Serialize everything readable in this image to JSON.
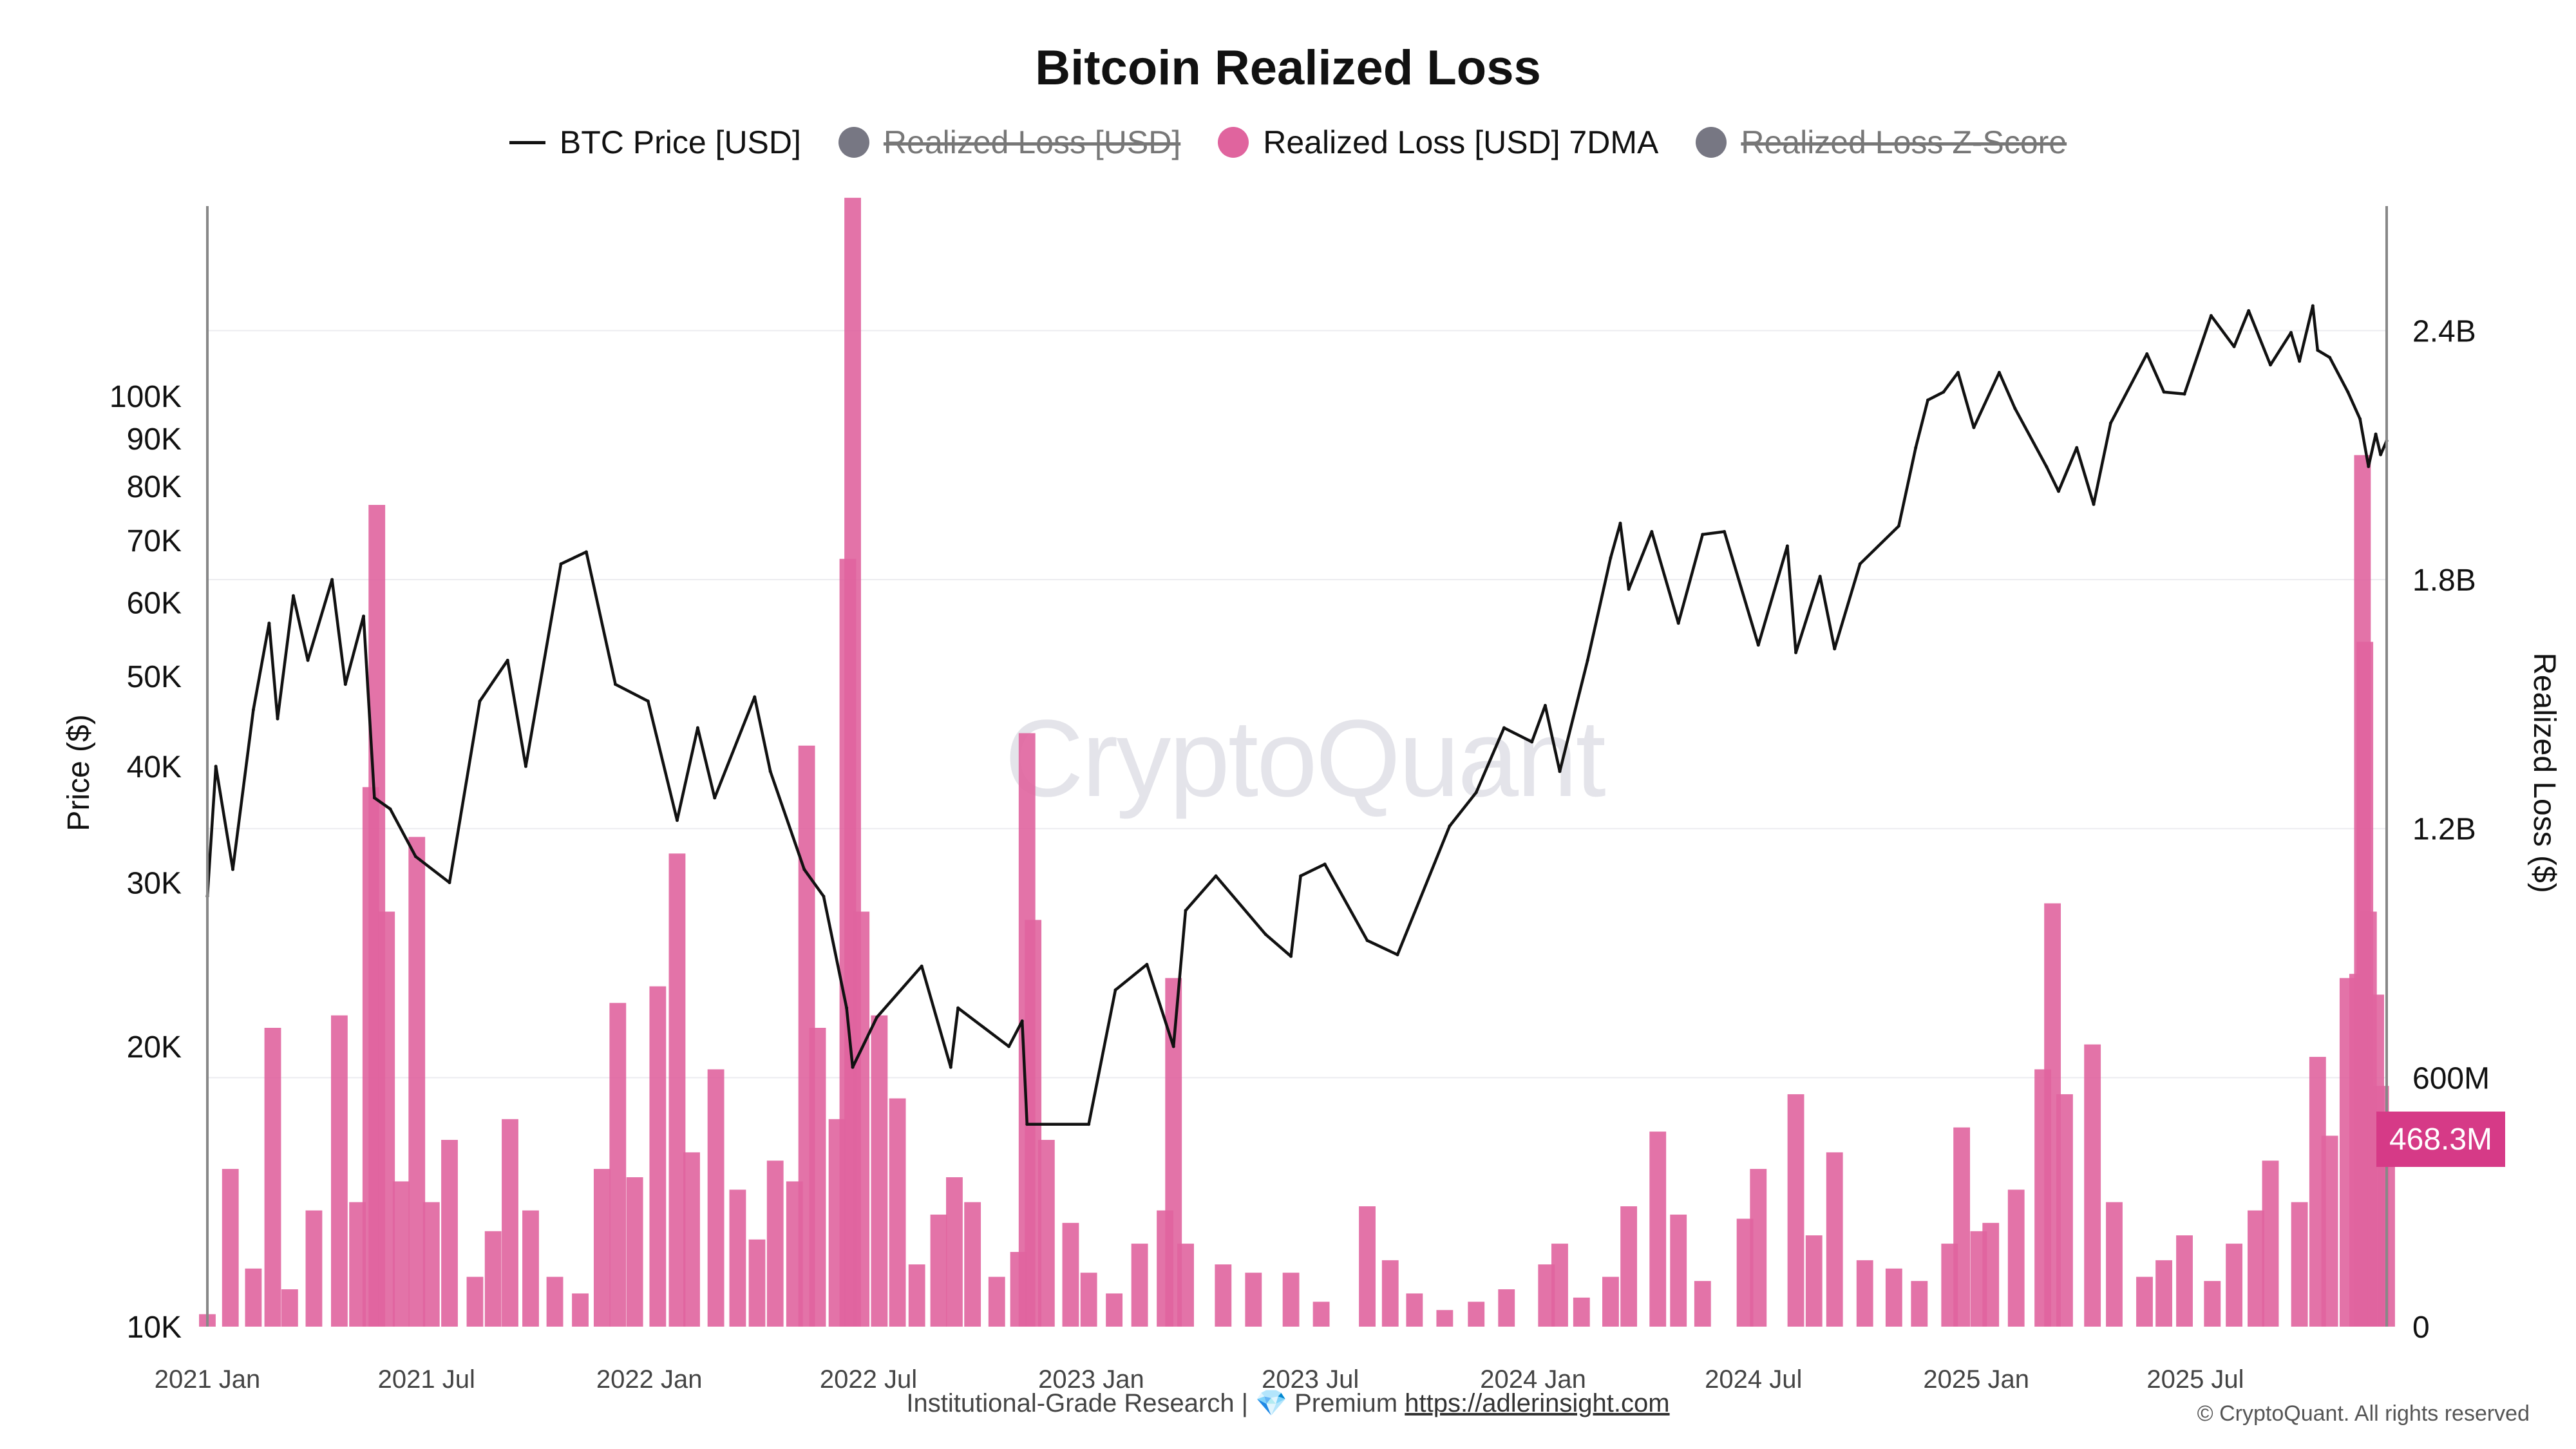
{
  "title": "Bitcoin Realized Loss",
  "legend": [
    {
      "label": "BTC Price [USD]",
      "kind": "line",
      "color": "#111111",
      "enabled": true
    },
    {
      "label": "Realized Loss [USD]",
      "kind": "dot",
      "color": "#777783",
      "enabled": false
    },
    {
      "label": "Realized Loss [USD] 7DMA",
      "kind": "dot",
      "color": "#e0649e",
      "enabled": true
    },
    {
      "label": "Realized Loss Z-Score",
      "kind": "dot",
      "color": "#777783",
      "enabled": false
    }
  ],
  "watermark": "CryptoQuant",
  "footer": {
    "text": "Institutional-Grade Research | 💎 Premium",
    "link": "https://adlerinsight.com",
    "copyright": "© CryptoQuant. All rights reserved"
  },
  "current_value_badge": "468.3M",
  "chart_data": {
    "type": "line+bar",
    "title": "Bitcoin Realized Loss",
    "x_start": "2021-01-01",
    "x_end": "2025-12-06",
    "x_ticks": [
      {
        "label": "2021 Jan",
        "date": "2021-01-01"
      },
      {
        "label": "2021 Jul",
        "date": "2021-07-01"
      },
      {
        "label": "2022 Jan",
        "date": "2022-01-01"
      },
      {
        "label": "2022 Jul",
        "date": "2022-07-01"
      },
      {
        "label": "2023 Jan",
        "date": "2023-01-01"
      },
      {
        "label": "2023 Jul",
        "date": "2023-07-01"
      },
      {
        "label": "2024 Jan",
        "date": "2024-01-01"
      },
      {
        "label": "2024 Jul",
        "date": "2024-07-01"
      },
      {
        "label": "2025 Jan",
        "date": "2025-01-01"
      },
      {
        "label": "2025 Jul",
        "date": "2025-07-01"
      }
    ],
    "left_axis": {
      "label": "Price ($)",
      "scale": "log",
      "range": [
        10000,
        160000
      ],
      "ticks": [
        {
          "label": "10K",
          "value": 10000
        },
        {
          "label": "20K",
          "value": 20000
        },
        {
          "label": "30K",
          "value": 30000
        },
        {
          "label": "40K",
          "value": 40000
        },
        {
          "label": "50K",
          "value": 50000
        },
        {
          "label": "60K",
          "value": 60000
        },
        {
          "label": "70K",
          "value": 70000
        },
        {
          "label": "80K",
          "value": 80000
        },
        {
          "label": "90K",
          "value": 90000
        },
        {
          "label": "100K",
          "value": 100000
        }
      ]
    },
    "right_axis": {
      "label": "Realized Loss ($)",
      "scale": "linear",
      "range": [
        0,
        2700000000
      ],
      "ticks": [
        {
          "label": "0",
          "value": 0
        },
        {
          "label": "600M",
          "value": 600000000
        },
        {
          "label": "1.2B",
          "value": 1200000000
        },
        {
          "label": "1.8B",
          "value": 1800000000
        },
        {
          "label": "2.4B",
          "value": 2400000000
        }
      ]
    },
    "series": [
      {
        "name": "BTC Price [USD]",
        "type": "line",
        "axis": "left",
        "color": "#111111",
        "points": [
          [
            "2021-01-01",
            29000
          ],
          [
            "2021-01-08",
            40000
          ],
          [
            "2021-01-22",
            31000
          ],
          [
            "2021-02-08",
            46000
          ],
          [
            "2021-02-21",
            57000
          ],
          [
            "2021-02-28",
            45000
          ],
          [
            "2021-03-13",
            61000
          ],
          [
            "2021-03-25",
            52000
          ],
          [
            "2021-04-14",
            63500
          ],
          [
            "2021-04-25",
            49000
          ],
          [
            "2021-05-10",
            58000
          ],
          [
            "2021-05-19",
            37000
          ],
          [
            "2021-06-01",
            36000
          ],
          [
            "2021-06-22",
            32000
          ],
          [
            "2021-07-20",
            30000
          ],
          [
            "2021-08-14",
            47000
          ],
          [
            "2021-09-06",
            52000
          ],
          [
            "2021-09-21",
            40000
          ],
          [
            "2021-10-20",
            66000
          ],
          [
            "2021-11-10",
            68000
          ],
          [
            "2021-12-04",
            49000
          ],
          [
            "2021-12-31",
            47000
          ],
          [
            "2022-01-24",
            35000
          ],
          [
            "2022-02-10",
            44000
          ],
          [
            "2022-02-24",
            37000
          ],
          [
            "2022-03-29",
            47500
          ],
          [
            "2022-04-11",
            39500
          ],
          [
            "2022-05-09",
            31000
          ],
          [
            "2022-05-25",
            29000
          ],
          [
            "2022-06-13",
            22000
          ],
          [
            "2022-06-18",
            19000
          ],
          [
            "2022-07-08",
            21500
          ],
          [
            "2022-08-14",
            24400
          ],
          [
            "2022-09-07",
            19000
          ],
          [
            "2022-09-13",
            22000
          ],
          [
            "2022-10-25",
            20000
          ],
          [
            "2022-11-05",
            21300
          ],
          [
            "2022-11-09",
            16500
          ],
          [
            "2022-12-30",
            16500
          ],
          [
            "2023-01-21",
            23000
          ],
          [
            "2023-02-16",
            24500
          ],
          [
            "2023-03-10",
            20000
          ],
          [
            "2023-03-20",
            28000
          ],
          [
            "2023-04-14",
            30500
          ],
          [
            "2023-05-25",
            26400
          ],
          [
            "2023-06-15",
            25000
          ],
          [
            "2023-06-23",
            30500
          ],
          [
            "2023-07-13",
            31400
          ],
          [
            "2023-08-17",
            26000
          ],
          [
            "2023-09-11",
            25100
          ],
          [
            "2023-10-24",
            34500
          ],
          [
            "2023-11-15",
            37500
          ],
          [
            "2023-12-08",
            44000
          ],
          [
            "2023-12-31",
            42500
          ],
          [
            "2024-01-11",
            46500
          ],
          [
            "2024-01-23",
            39500
          ],
          [
            "2024-02-15",
            52000
          ],
          [
            "2024-03-05",
            67000
          ],
          [
            "2024-03-13",
            73000
          ],
          [
            "2024-03-20",
            62000
          ],
          [
            "2024-04-08",
            71500
          ],
          [
            "2024-04-30",
            57000
          ],
          [
            "2024-05-20",
            71000
          ],
          [
            "2024-06-07",
            71500
          ],
          [
            "2024-07-05",
            54000
          ],
          [
            "2024-07-29",
            69000
          ],
          [
            "2024-08-05",
            53000
          ],
          [
            "2024-08-25",
            64000
          ],
          [
            "2024-09-06",
            53500
          ],
          [
            "2024-09-27",
            66000
          ],
          [
            "2024-10-29",
            72500
          ],
          [
            "2024-11-12",
            88000
          ],
          [
            "2024-11-22",
            99000
          ],
          [
            "2024-12-05",
            101000
          ],
          [
            "2024-12-17",
            106000
          ],
          [
            "2024-12-30",
            92500
          ],
          [
            "2025-01-20",
            106000
          ],
          [
            "2025-02-02",
            97000
          ],
          [
            "2025-02-28",
            84000
          ],
          [
            "2025-03-10",
            79000
          ],
          [
            "2025-03-25",
            88000
          ],
          [
            "2025-04-08",
            76500
          ],
          [
            "2025-04-22",
            93500
          ],
          [
            "2025-05-22",
            111000
          ],
          [
            "2025-06-05",
            101000
          ],
          [
            "2025-06-22",
            100500
          ],
          [
            "2025-07-14",
            122000
          ],
          [
            "2025-08-02",
            113000
          ],
          [
            "2025-08-14",
            123500
          ],
          [
            "2025-09-01",
            108000
          ],
          [
            "2025-09-18",
            117000
          ],
          [
            "2025-09-25",
            109000
          ],
          [
            "2025-10-06",
            125000
          ],
          [
            "2025-10-10",
            112000
          ],
          [
            "2025-10-20",
            110000
          ],
          [
            "2025-11-04",
            101000
          ],
          [
            "2025-11-14",
            94500
          ],
          [
            "2025-11-21",
            84000
          ],
          [
            "2025-11-27",
            91000
          ],
          [
            "2025-12-01",
            86500
          ],
          [
            "2025-12-06",
            89500
          ]
        ]
      },
      {
        "name": "Realized Loss [USD] 7DMA",
        "type": "bar",
        "axis": "right",
        "color": "#e0649e",
        "points": [
          [
            "2021-01-01",
            30000000
          ],
          [
            "2021-01-20",
            380000000
          ],
          [
            "2021-02-08",
            140000000
          ],
          [
            "2021-02-24",
            720000000
          ],
          [
            "2021-03-10",
            90000000
          ],
          [
            "2021-03-30",
            280000000
          ],
          [
            "2021-04-20",
            750000000
          ],
          [
            "2021-05-05",
            300000000
          ],
          [
            "2021-05-16",
            1300000000
          ],
          [
            "2021-05-21",
            1980000000
          ],
          [
            "2021-05-29",
            1000000000
          ],
          [
            "2021-06-10",
            350000000
          ],
          [
            "2021-06-23",
            1180000000
          ],
          [
            "2021-07-05",
            300000000
          ],
          [
            "2021-07-20",
            450000000
          ],
          [
            "2021-08-10",
            120000000
          ],
          [
            "2021-08-25",
            230000000
          ],
          [
            "2021-09-08",
            500000000
          ],
          [
            "2021-09-25",
            280000000
          ],
          [
            "2021-10-15",
            120000000
          ],
          [
            "2021-11-05",
            80000000
          ],
          [
            "2021-11-23",
            380000000
          ],
          [
            "2021-12-06",
            780000000
          ],
          [
            "2021-12-20",
            360000000
          ],
          [
            "2022-01-08",
            820000000
          ],
          [
            "2022-01-24",
            1140000000
          ],
          [
            "2022-02-05",
            420000000
          ],
          [
            "2022-02-25",
            620000000
          ],
          [
            "2022-03-15",
            330000000
          ],
          [
            "2022-03-31",
            210000000
          ],
          [
            "2022-04-15",
            400000000
          ],
          [
            "2022-05-01",
            350000000
          ],
          [
            "2022-05-11",
            1400000000
          ],
          [
            "2022-05-20",
            720000000
          ],
          [
            "2022-06-05",
            500000000
          ],
          [
            "2022-06-14",
            1850000000
          ],
          [
            "2022-06-18",
            2720000000
          ],
          [
            "2022-06-25",
            1000000000
          ],
          [
            "2022-07-10",
            750000000
          ],
          [
            "2022-07-25",
            550000000
          ],
          [
            "2022-08-10",
            150000000
          ],
          [
            "2022-08-28",
            270000000
          ],
          [
            "2022-09-10",
            360000000
          ],
          [
            "2022-09-25",
            300000000
          ],
          [
            "2022-10-15",
            120000000
          ],
          [
            "2022-11-02",
            180000000
          ],
          [
            "2022-11-09",
            1430000000
          ],
          [
            "2022-11-14",
            980000000
          ],
          [
            "2022-11-25",
            450000000
          ],
          [
            "2022-12-15",
            250000000
          ],
          [
            "2022-12-30",
            130000000
          ],
          [
            "2023-01-20",
            80000000
          ],
          [
            "2023-02-10",
            200000000
          ],
          [
            "2023-03-03",
            280000000
          ],
          [
            "2023-03-10",
            840000000
          ],
          [
            "2023-03-20",
            200000000
          ],
          [
            "2023-04-20",
            150000000
          ],
          [
            "2023-05-15",
            130000000
          ],
          [
            "2023-06-15",
            130000000
          ],
          [
            "2023-07-10",
            60000000
          ],
          [
            "2023-08-17",
            290000000
          ],
          [
            "2023-09-05",
            160000000
          ],
          [
            "2023-09-25",
            80000000
          ],
          [
            "2023-10-20",
            40000000
          ],
          [
            "2023-11-15",
            60000000
          ],
          [
            "2023-12-10",
            90000000
          ],
          [
            "2024-01-12",
            150000000
          ],
          [
            "2024-01-23",
            200000000
          ],
          [
            "2024-02-10",
            70000000
          ],
          [
            "2024-03-05",
            120000000
          ],
          [
            "2024-03-20",
            290000000
          ],
          [
            "2024-04-13",
            470000000
          ],
          [
            "2024-04-30",
            270000000
          ],
          [
            "2024-05-20",
            110000000
          ],
          [
            "2024-06-24",
            260000000
          ],
          [
            "2024-07-05",
            380000000
          ],
          [
            "2024-08-05",
            560000000
          ],
          [
            "2024-08-20",
            220000000
          ],
          [
            "2024-09-06",
            420000000
          ],
          [
            "2024-10-01",
            160000000
          ],
          [
            "2024-10-25",
            140000000
          ],
          [
            "2024-11-15",
            110000000
          ],
          [
            "2024-12-10",
            200000000
          ],
          [
            "2024-12-20",
            480000000
          ],
          [
            "2025-01-03",
            230000000
          ],
          [
            "2025-01-13",
            250000000
          ],
          [
            "2025-02-03",
            330000000
          ],
          [
            "2025-02-25",
            620000000
          ],
          [
            "2025-03-05",
            1020000000
          ],
          [
            "2025-03-15",
            560000000
          ],
          [
            "2025-04-07",
            680000000
          ],
          [
            "2025-04-25",
            300000000
          ],
          [
            "2025-05-20",
            120000000
          ],
          [
            "2025-06-05",
            160000000
          ],
          [
            "2025-06-22",
            220000000
          ],
          [
            "2025-07-15",
            110000000
          ],
          [
            "2025-08-02",
            200000000
          ],
          [
            "2025-08-20",
            280000000
          ],
          [
            "2025-09-01",
            400000000
          ],
          [
            "2025-09-25",
            300000000
          ],
          [
            "2025-10-10",
            650000000
          ],
          [
            "2025-10-20",
            460000000
          ],
          [
            "2025-11-04",
            840000000
          ],
          [
            "2025-11-12",
            850000000
          ],
          [
            "2025-11-16",
            2100000000
          ],
          [
            "2025-11-18",
            1650000000
          ],
          [
            "2025-11-21",
            1000000000
          ],
          [
            "2025-11-27",
            800000000
          ],
          [
            "2025-12-01",
            580000000
          ],
          [
            "2025-12-06",
            468300000
          ]
        ]
      }
    ]
  }
}
